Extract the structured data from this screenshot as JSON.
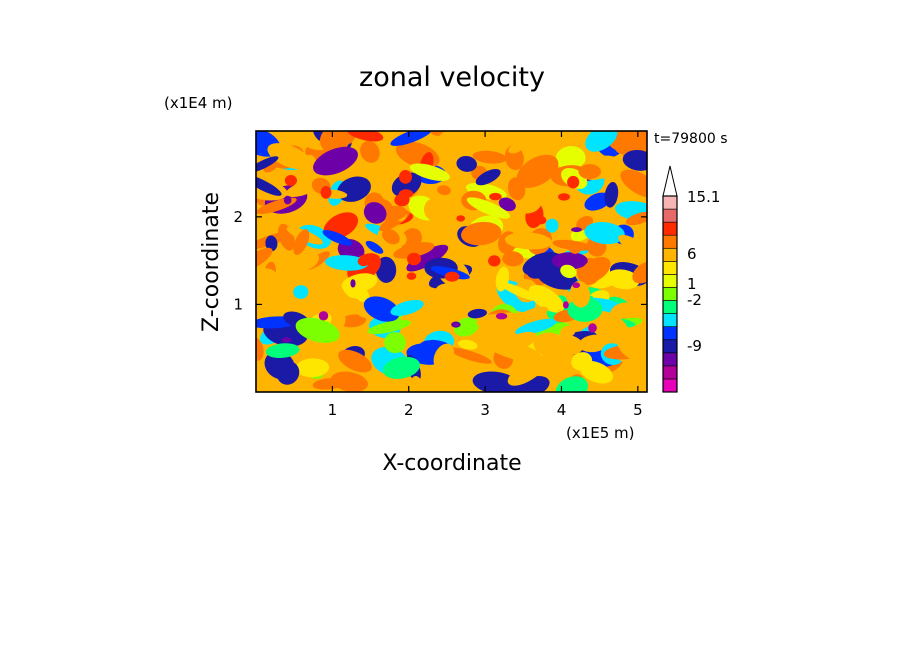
{
  "chart_data": {
    "type": "heatmap",
    "title": "zonal velocity",
    "xlabel": "X-coordinate",
    "ylabel": "Z-coordinate",
    "x_scale_label": "(x1E5 m)",
    "y_scale_label": "(x1E4 m)",
    "time_label": "t=79800 s",
    "xlim": [
      0,
      5.12
    ],
    "ylim": [
      0,
      2.98
    ],
    "x_ticks": [
      "1",
      "2",
      "3",
      "4",
      "5"
    ],
    "y_ticks": [
      "1",
      "2"
    ],
    "colorbar": {
      "labels": [
        "15.1",
        "6",
        "1",
        "-2",
        "-9"
      ],
      "levels": [
        {
          "color": "#e600b8"
        },
        {
          "color": "#b4009a"
        },
        {
          "color": "#6e00a8"
        },
        {
          "color": "#1a1aa6"
        },
        {
          "color": "#0033ff"
        },
        {
          "color": "#00e4ff"
        },
        {
          "color": "#00ff7a"
        },
        {
          "color": "#7cff00"
        },
        {
          "color": "#e6ff00"
        },
        {
          "color": "#ffe600"
        },
        {
          "color": "#ffb400"
        },
        {
          "color": "#ff7800"
        },
        {
          "color": "#ff2a00"
        },
        {
          "color": "#e66a6a"
        },
        {
          "color": "#f7b4b4"
        },
        {
          "color": "#ffffff"
        }
      ]
    }
  }
}
